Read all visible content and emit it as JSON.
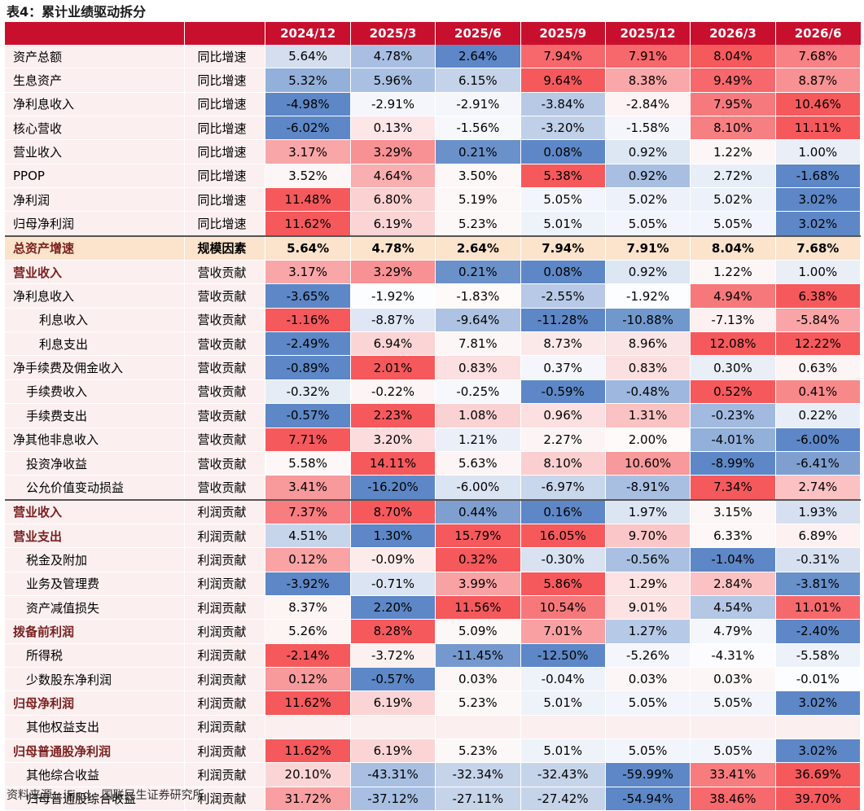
{
  "title": "表4：累计业绩驱动拆分",
  "source": "资料来源：iFind，国联民生证券研究所",
  "columns": [
    "",
    "",
    "2024/12",
    "2025/3",
    "2025/6",
    "2025/9",
    "2025/12",
    "2026/3",
    "2026/6"
  ],
  "rows": [
    {
      "name": "资产总额",
      "type": "同比增速",
      "indent": 0,
      "bold": false,
      "values": [
        "5.64%",
        "4.78%",
        "2.64%",
        "7.94%",
        "7.91%",
        "8.04%",
        "7.68%"
      ],
      "colors": [
        "#d5deef",
        "#a8bfe2",
        "#5d87c6",
        "#f6686c",
        "#f6686c",
        "#f5595c",
        "#f78184"
      ]
    },
    {
      "name": "生息资产",
      "type": "同比增速",
      "indent": 0,
      "bold": false,
      "values": [
        "5.32%",
        "5.96%",
        "6.15%",
        "9.64%",
        "8.38%",
        "9.49%",
        "8.87%"
      ],
      "colors": [
        "#93b0db",
        "#a9c0e2",
        "#c4d3ea",
        "#f5595c",
        "#f9a7a8",
        "#f6686c",
        "#f79193"
      ]
    },
    {
      "name": "净利息收入",
      "type": "同比增速",
      "indent": 0,
      "bold": false,
      "values": [
        "-4.98%",
        "-2.91%",
        "-2.91%",
        "-3.84%",
        "-2.84%",
        "7.95%",
        "10.46%"
      ],
      "colors": [
        "#5d87c6",
        "#f4f6fc",
        "#f4f6fc",
        "#b8c9e6",
        "#fdf3f4",
        "#f67a7d",
        "#f5595c"
      ]
    },
    {
      "name": "核心营收",
      "type": "同比增速",
      "indent": 0,
      "bold": false,
      "values": [
        "-6.02%",
        "0.13%",
        "-1.56%",
        "-3.20%",
        "-1.58%",
        "8.10%",
        "11.11%"
      ],
      "colors": [
        "#5d87c6",
        "#fde6e7",
        "#f6f8fc",
        "#c0d0e8",
        "#f4f6fb",
        "#f67f82",
        "#f5595c"
      ]
    },
    {
      "name": "营业收入",
      "type": "同比增速",
      "indent": 0,
      "bold": false,
      "values": [
        "3.17%",
        "3.29%",
        "0.21%",
        "0.08%",
        "0.92%",
        "1.22%",
        "1.00%"
      ],
      "colors": [
        "#f9a6a8",
        "#f79194",
        "#6b91ca",
        "#5d87c6",
        "#dde6f3",
        "#fcf6f7",
        "#e9eef7"
      ]
    },
    {
      "name": "PPOP",
      "type": "同比增速",
      "indent": 0,
      "bold": false,
      "values": [
        "3.52%",
        "4.64%",
        "3.50%",
        "5.38%",
        "0.92%",
        "2.72%",
        "-1.68%"
      ],
      "colors": [
        "#fdf6f6",
        "#f9aeb0",
        "#fdf7f7",
        "#f5595c",
        "#a8bfe2",
        "#e8eef7",
        "#5d87c6"
      ]
    },
    {
      "name": "净利润",
      "type": "同比增速",
      "indent": 0,
      "bold": false,
      "values": [
        "11.48%",
        "6.80%",
        "5.19%",
        "5.05%",
        "5.02%",
        "5.02%",
        "3.02%"
      ],
      "colors": [
        "#f5595c",
        "#fbd1d2",
        "#fdf8f8",
        "#f2f5fb",
        "#edf1f9",
        "#edf1f9",
        "#5d87c6"
      ]
    },
    {
      "name": "归母净利润",
      "type": "同比增速",
      "indent": 0,
      "bold": false,
      "values": [
        "11.62%",
        "6.19%",
        "5.23%",
        "5.01%",
        "5.05%",
        "5.05%",
        "3.02%"
      ],
      "colors": [
        "#f5595c",
        "#fbd5d6",
        "#fdf8f8",
        "#eef2f9",
        "#f2f5fb",
        "#f2f5fb",
        "#5d87c6"
      ]
    },
    {
      "name": "总资产增速",
      "type": "规模因素",
      "indent": 0,
      "bold": true,
      "highlight": true,
      "sep": true,
      "values": [
        "5.64%",
        "4.78%",
        "2.64%",
        "7.94%",
        "7.91%",
        "8.04%",
        "7.68%"
      ],
      "colors": [
        "#fbe3cc",
        "#a8bfe2",
        "#5d87c6",
        "#f6686c",
        "#f6686c",
        "#f5595c",
        "#f78184"
      ]
    },
    {
      "name": "营业收入",
      "type": "营收贡献",
      "indent": 0,
      "bold": true,
      "values": [
        "3.17%",
        "3.29%",
        "0.21%",
        "0.08%",
        "0.92%",
        "1.22%",
        "1.00%"
      ],
      "colors": [
        "#f9a6a8",
        "#f79194",
        "#6b91ca",
        "#5d87c6",
        "#dde6f3",
        "#fcf6f7",
        "#e9eef7"
      ]
    },
    {
      "name": "净利息收入",
      "type": "营收贡献",
      "indent": 0,
      "bold": false,
      "values": [
        "-3.65%",
        "-1.92%",
        "-1.83%",
        "-2.55%",
        "-1.92%",
        "4.94%",
        "6.38%"
      ],
      "colors": [
        "#5d87c6",
        "#fcfdfe",
        "#fefafa",
        "#b7c9e6",
        "#fcfdfe",
        "#f7787b",
        "#f5595c"
      ]
    },
    {
      "name": "利息收入",
      "type": "营收贡献",
      "indent": 2,
      "bold": false,
      "values": [
        "-1.16%",
        "-8.87%",
        "-9.64%",
        "-11.28%",
        "-10.88%",
        "-7.13%",
        "-5.84%"
      ],
      "colors": [
        "#f5595c",
        "#e0e7f4",
        "#aec3e3",
        "#5d87c6",
        "#7198cd",
        "#fdf0f0",
        "#f9a5a7"
      ]
    },
    {
      "name": "利息支出",
      "type": "营收贡献",
      "indent": 2,
      "bold": false,
      "values": [
        "-2.49%",
        "6.94%",
        "7.81%",
        "8.73%",
        "8.96%",
        "12.08%",
        "12.22%"
      ],
      "colors": [
        "#5d87c6",
        "#fbd4d5",
        "#fdf6f6",
        "#fbe9ea",
        "#fae4e5",
        "#f5595c",
        "#f5595c"
      ]
    },
    {
      "name": "净手续费及佣金收入",
      "type": "营收贡献",
      "indent": 0,
      "bold": false,
      "values": [
        "-0.89%",
        "2.01%",
        "0.83%",
        "0.37%",
        "0.83%",
        "0.30%",
        "0.63%"
      ],
      "colors": [
        "#5d87c6",
        "#f5595c",
        "#fcdfe0",
        "#f4f6fb",
        "#fcdfe0",
        "#e9eef7",
        "#fdf5f5"
      ]
    },
    {
      "name": "手续费收入",
      "type": "营收贡献",
      "indent": 1,
      "bold": false,
      "values": [
        "-0.32%",
        "-0.22%",
        "-0.25%",
        "-0.59%",
        "-0.48%",
        "0.52%",
        "0.41%"
      ],
      "colors": [
        "#e5ecf6",
        "#fdf5f5",
        "#f6f8fc",
        "#5d87c6",
        "#9eb7df",
        "#f5595c",
        "#f8898b"
      ]
    },
    {
      "name": "手续费支出",
      "type": "营收贡献",
      "indent": 1,
      "bold": false,
      "values": [
        "-0.57%",
        "2.23%",
        "1.08%",
        "0.96%",
        "1.31%",
        "-0.23%",
        "0.22%"
      ],
      "colors": [
        "#5d87c6",
        "#f5595c",
        "#fbd2d3",
        "#fcdfe0",
        "#fbc2c3",
        "#a2bae0",
        "#e8eef7"
      ]
    },
    {
      "name": "净其他非息收入",
      "type": "营收贡献",
      "indent": 0,
      "bold": false,
      "values": [
        "7.71%",
        "3.20%",
        "1.21%",
        "2.27%",
        "2.00%",
        "-4.01%",
        "-6.00%"
      ],
      "colors": [
        "#f5595c",
        "#fcdcdd",
        "#ebf0f8",
        "#fdf5f5",
        "#fefafa",
        "#93b0db",
        "#5d87c6"
      ]
    },
    {
      "name": "投资净收益",
      "type": "营收贡献",
      "indent": 1,
      "bold": false,
      "values": [
        "5.58%",
        "14.11%",
        "5.63%",
        "8.10%",
        "10.60%",
        "-8.99%",
        "-6.41%"
      ],
      "colors": [
        "#fdf7f7",
        "#f5595c",
        "#fdf5f5",
        "#fbcfd0",
        "#f8999b",
        "#5d87c6",
        "#7f9fd1"
      ]
    },
    {
      "name": "公允价值变动损益",
      "type": "营收贡献",
      "indent": 1,
      "bold": false,
      "values": [
        "3.41%",
        "-16.20%",
        "-6.00%",
        "-6.97%",
        "-8.91%",
        "7.34%",
        "2.74%"
      ],
      "colors": [
        "#f8999b",
        "#5d87c6",
        "#dbe4f2",
        "#c9d7ec",
        "#a8bfe2",
        "#f5595c",
        "#fbc1c3"
      ]
    },
    {
      "name": "营业收入",
      "type": "利润贡献",
      "indent": 0,
      "bold": true,
      "sep": true,
      "values": [
        "7.37%",
        "8.70%",
        "0.44%",
        "0.16%",
        "1.97%",
        "3.15%",
        "1.93%"
      ],
      "colors": [
        "#f87d80",
        "#f5595c",
        "#7f9fd1",
        "#5d87c6",
        "#dce5f2",
        "#fdf6f6",
        "#d6e0f0"
      ]
    },
    {
      "name": "营业支出",
      "type": "利润贡献",
      "indent": 0,
      "bold": true,
      "values": [
        "4.51%",
        "1.30%",
        "15.79%",
        "16.05%",
        "9.70%",
        "6.33%",
        "6.89%"
      ],
      "colors": [
        "#c7d5eb",
        "#5d87c6",
        "#f5595c",
        "#f5595c",
        "#fbc6c7",
        "#fdf7f7",
        "#fdf1f2"
      ]
    },
    {
      "name": "税金及附加",
      "type": "利润贡献",
      "indent": 1,
      "bold": false,
      "values": [
        "0.12%",
        "-0.09%",
        "0.32%",
        "-0.30%",
        "-0.56%",
        "-1.04%",
        "-0.31%"
      ],
      "colors": [
        "#f9a3a5",
        "#fdebec",
        "#f5595c",
        "#d8e2f1",
        "#a9c0e2",
        "#5d87c6",
        "#d6e0f0"
      ]
    },
    {
      "name": "业务及管理费",
      "type": "利润贡献",
      "indent": 1,
      "bold": false,
      "values": [
        "-3.92%",
        "-0.71%",
        "3.99%",
        "5.86%",
        "1.29%",
        "2.84%",
        "-3.81%"
      ],
      "colors": [
        "#5d87c6",
        "#dbe4f2",
        "#f9a2a4",
        "#f5595c",
        "#fce2e3",
        "#fac2c3",
        "#6890c9"
      ]
    },
    {
      "name": "资产减值损失",
      "type": "利润贡献",
      "indent": 1,
      "bold": false,
      "values": [
        "8.37%",
        "2.20%",
        "11.56%",
        "10.54%",
        "9.01%",
        "4.54%",
        "11.01%"
      ],
      "colors": [
        "#fdf4f4",
        "#5d87c6",
        "#f5595c",
        "#f6787b",
        "#fce2e3",
        "#b4c7e5",
        "#f5696c"
      ]
    },
    {
      "name": "拨备前利润",
      "type": "利润贡献",
      "indent": 0,
      "bold": true,
      "values": [
        "5.26%",
        "8.28%",
        "5.09%",
        "7.01%",
        "1.27%",
        "4.79%",
        "-2.40%"
      ],
      "colors": [
        "#fdf4f4",
        "#f5595c",
        "#fdf8f8",
        "#f9a0a2",
        "#b6c9e6",
        "#f4f6fb",
        "#5d87c6"
      ]
    },
    {
      "name": "所得税",
      "type": "利润贡献",
      "indent": 1,
      "bold": false,
      "values": [
        "-2.14%",
        "-3.72%",
        "-11.45%",
        "-12.50%",
        "-5.26%",
        "-4.31%",
        "-5.58%"
      ],
      "colors": [
        "#f5595c",
        "#fdf0f0",
        "#7599ce",
        "#5d87c6",
        "#f4f6fb",
        "#fcfcfe",
        "#edf1f9"
      ]
    },
    {
      "name": "少数股东净利润",
      "type": "利润贡献",
      "indent": 1,
      "bold": false,
      "values": [
        "0.12%",
        "-0.57%",
        "0.03%",
        "-0.04%",
        "0.03%",
        "0.03%",
        "-0.01%"
      ],
      "colors": [
        "#f8999b",
        "#5d87c6",
        "#fdf6f6",
        "#eef2f9",
        "#fdf6f6",
        "#fdf6f6",
        "#fcfdfe"
      ]
    },
    {
      "name": "归母净利润",
      "type": "利润贡献",
      "indent": 0,
      "bold": true,
      "values": [
        "11.62%",
        "6.19%",
        "5.23%",
        "5.01%",
        "5.05%",
        "5.05%",
        "3.02%"
      ],
      "colors": [
        "#f5595c",
        "#fbd5d6",
        "#fdf8f8",
        "#eef2f9",
        "#f2f5fb",
        "#f2f5fb",
        "#5d87c6"
      ]
    },
    {
      "name": "其他权益支出",
      "type": "利润贡献",
      "indent": 1,
      "bold": false,
      "values": [
        "",
        "",
        "",
        "",
        "",
        "",
        ""
      ],
      "colors": [
        "#fbefef",
        "#fbefef",
        "#fbefef",
        "#fbefef",
        "#fbefef",
        "#fbefef",
        "#fbefef"
      ]
    },
    {
      "name": "归母普通股净利润",
      "type": "利润贡献",
      "indent": 0,
      "bold": true,
      "values": [
        "11.62%",
        "6.19%",
        "5.23%",
        "5.01%",
        "5.05%",
        "5.05%",
        "3.02%"
      ],
      "colors": [
        "#f5595c",
        "#fbd5d6",
        "#fdf8f8",
        "#eef2f9",
        "#f2f5fb",
        "#f2f5fb",
        "#5d87c6"
      ]
    },
    {
      "name": "其他综合收益",
      "type": "利润贡献",
      "indent": 1,
      "bold": false,
      "values": [
        "20.10%",
        "-43.31%",
        "-32.34%",
        "-32.43%",
        "-59.99%",
        "33.41%",
        "36.69%"
      ],
      "colors": [
        "#fbd5d6",
        "#a8bfe2",
        "#c6d4ea",
        "#c6d4ea",
        "#5d87c6",
        "#f87b7e",
        "#f5595c"
      ]
    },
    {
      "name": "归母普通股综合收益",
      "type": "利润贡献",
      "indent": 1,
      "bold": false,
      "values": [
        "31.72%",
        "-37.12%",
        "-27.11%",
        "-27.42%",
        "-54.94%",
        "38.46%",
        "39.70%"
      ],
      "colors": [
        "#f99fa1",
        "#a8bfe2",
        "#c6d4ea",
        "#c6d4ea",
        "#5d87c6",
        "#f6696c",
        "#f5595c"
      ]
    }
  ]
}
